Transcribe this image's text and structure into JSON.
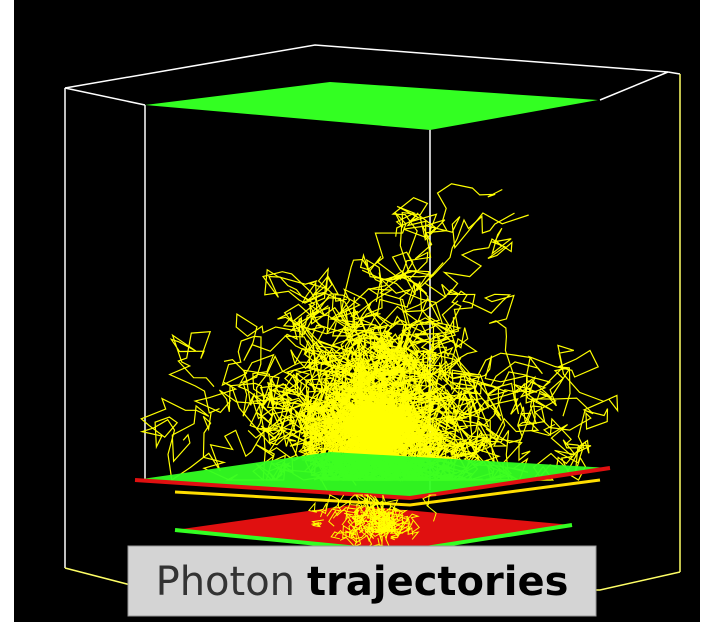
{
  "caption": {
    "plain": "Photon",
    "strong": "trajectories"
  }
}
